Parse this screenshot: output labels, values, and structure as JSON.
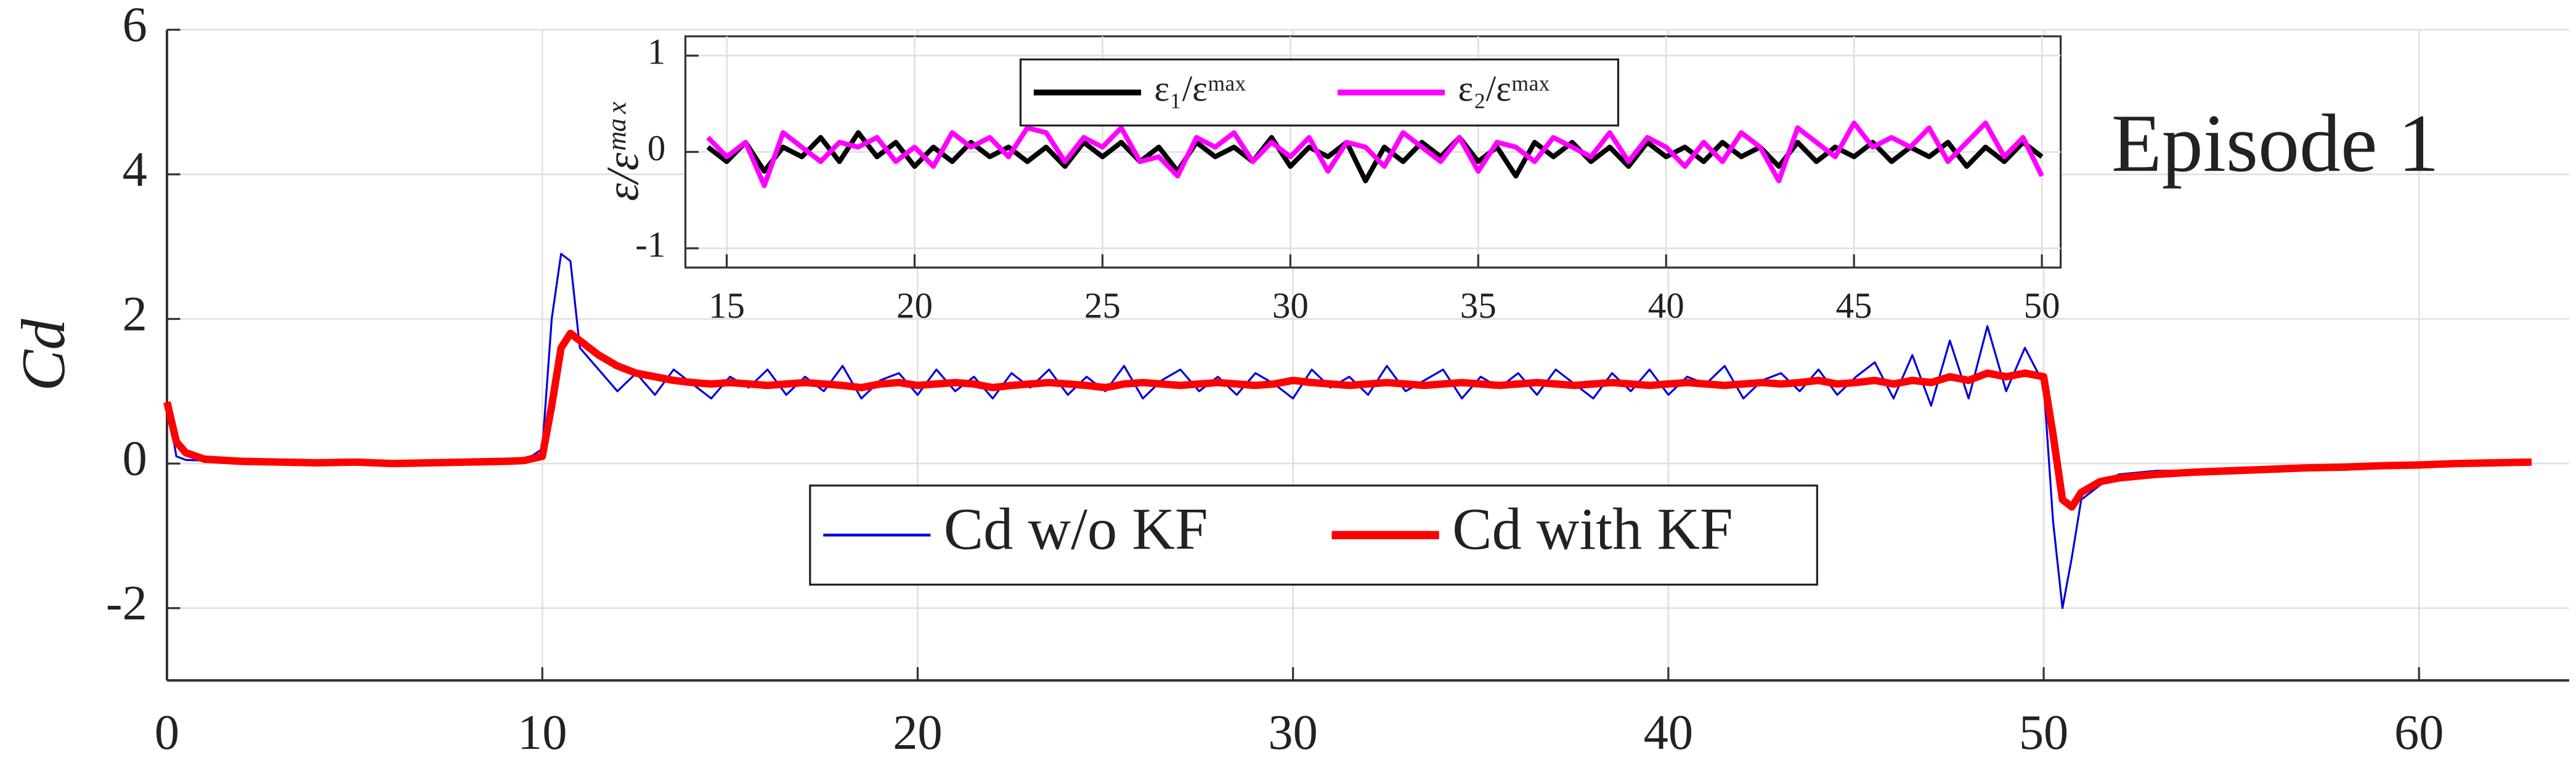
{
  "chart_data": [
    {
      "type": "line",
      "ylabel": "Cd",
      "annotation": "Episode 1",
      "legend": "lower center",
      "grid": true,
      "xlim": [
        0,
        64
      ],
      "xticks": [
        0,
        10,
        20,
        30,
        40,
        50,
        60
      ],
      "ylim": [
        -3,
        6
      ],
      "yticks": [
        {
          "value": -2,
          "label": "-2"
        },
        0,
        2,
        4,
        6
      ],
      "x": [
        0,
        0.25,
        0.5,
        1,
        2,
        3,
        4,
        5,
        6,
        7,
        8,
        9,
        9.5,
        10,
        10.25,
        10.5,
        10.75,
        11,
        11.5,
        12,
        12.5,
        13,
        13.5,
        14,
        14.5,
        15,
        15.5,
        16,
        16.5,
        17,
        17.5,
        18,
        18.5,
        19,
        19.5,
        20,
        20.5,
        21,
        21.5,
        22,
        22.5,
        23,
        23.5,
        24,
        24.5,
        25,
        25.5,
        26,
        26.5,
        27,
        27.5,
        28,
        28.5,
        29,
        29.5,
        30,
        30.5,
        31,
        31.5,
        32,
        32.5,
        33,
        33.5,
        34,
        34.5,
        35,
        35.5,
        36,
        36.5,
        37,
        37.5,
        38,
        38.5,
        39,
        39.5,
        40,
        40.5,
        41,
        41.5,
        42,
        42.5,
        43,
        43.5,
        44,
        44.5,
        45,
        45.5,
        46,
        46.5,
        47,
        47.5,
        48,
        48.5,
        49,
        49.5,
        50,
        50.25,
        50.5,
        50.75,
        51,
        51.5,
        52,
        53,
        54,
        55,
        56,
        57,
        58,
        59,
        60,
        61,
        62,
        63
      ],
      "series": [
        {
          "name": "Cd w/o KF",
          "color": "#0000dd",
          "values": [
            0.85,
            0.1,
            0.05,
            0.04,
            0.02,
            0.01,
            0.02,
            0.01,
            0.0,
            0.01,
            0.02,
            0.02,
            0.03,
            0.2,
            2.0,
            2.9,
            2.8,
            1.6,
            1.3,
            1.0,
            1.25,
            0.95,
            1.3,
            1.1,
            0.9,
            1.2,
            1.05,
            1.3,
            0.95,
            1.2,
            1.0,
            1.35,
            0.9,
            1.15,
            1.25,
            0.95,
            1.3,
            1.0,
            1.2,
            0.9,
            1.25,
            1.05,
            1.3,
            0.95,
            1.2,
            1.0,
            1.35,
            0.9,
            1.15,
            1.3,
            1.0,
            1.2,
            0.95,
            1.25,
            1.1,
            0.9,
            1.3,
            1.05,
            1.2,
            0.95,
            1.35,
            1.0,
            1.15,
            1.3,
            0.9,
            1.2,
            1.05,
            1.25,
            0.95,
            1.3,
            1.1,
            0.9,
            1.25,
            1.0,
            1.3,
            0.95,
            1.2,
            1.1,
            1.35,
            0.9,
            1.15,
            1.25,
            1.0,
            1.3,
            0.95,
            1.2,
            1.4,
            0.9,
            1.5,
            0.8,
            1.7,
            0.9,
            1.9,
            1.0,
            1.6,
            1.1,
            -0.8,
            -2.0,
            -1.3,
            -0.5,
            -0.3,
            -0.15,
            -0.1,
            -0.1,
            -0.08,
            -0.05,
            -0.04,
            -0.03,
            -0.02,
            -0.01,
            0.0,
            0.01,
            0.02
          ]
        },
        {
          "name": "Cd with KF",
          "color": "#ff0000",
          "values": [
            0.85,
            0.3,
            0.15,
            0.06,
            0.03,
            0.02,
            0.01,
            0.02,
            0.0,
            0.01,
            0.02,
            0.03,
            0.04,
            0.1,
            0.8,
            1.6,
            1.8,
            1.7,
            1.5,
            1.35,
            1.25,
            1.2,
            1.15,
            1.12,
            1.1,
            1.12,
            1.1,
            1.08,
            1.1,
            1.12,
            1.1,
            1.08,
            1.05,
            1.1,
            1.12,
            1.08,
            1.1,
            1.12,
            1.1,
            1.05,
            1.08,
            1.1,
            1.12,
            1.1,
            1.08,
            1.05,
            1.1,
            1.12,
            1.1,
            1.08,
            1.1,
            1.12,
            1.1,
            1.08,
            1.1,
            1.15,
            1.12,
            1.1,
            1.08,
            1.1,
            1.12,
            1.1,
            1.08,
            1.1,
            1.12,
            1.1,
            1.08,
            1.1,
            1.12,
            1.1,
            1.08,
            1.1,
            1.12,
            1.1,
            1.08,
            1.1,
            1.12,
            1.1,
            1.08,
            1.1,
            1.12,
            1.1,
            1.12,
            1.15,
            1.1,
            1.12,
            1.15,
            1.1,
            1.15,
            1.12,
            1.2,
            1.15,
            1.25,
            1.2,
            1.25,
            1.2,
            0.4,
            -0.5,
            -0.6,
            -0.4,
            -0.25,
            -0.2,
            -0.15,
            -0.12,
            -0.1,
            -0.08,
            -0.06,
            -0.05,
            -0.03,
            -0.02,
            0.0,
            0.01,
            0.02
          ]
        }
      ]
    },
    {
      "type": "line",
      "ylabel": "ε/εᵐᵃˣ",
      "legend": "upper center",
      "grid": true,
      "xlim": [
        13.9,
        50.5
      ],
      "xticks": [
        15,
        20,
        25,
        30,
        35,
        40,
        45,
        50
      ],
      "ylim": [
        -1.2,
        1.2
      ],
      "yticks": [
        -1,
        0,
        1
      ],
      "x": [
        14.5,
        15,
        15.5,
        16,
        16.5,
        17,
        17.5,
        18,
        18.5,
        19,
        19.5,
        20,
        20.5,
        21,
        21.5,
        22,
        22.5,
        23,
        23.5,
        24,
        24.5,
        25,
        25.5,
        26,
        26.5,
        27,
        27.5,
        28,
        28.5,
        29,
        29.5,
        30,
        30.5,
        31,
        31.5,
        32,
        32.5,
        33,
        33.5,
        34,
        34.5,
        35,
        35.5,
        36,
        36.5,
        37,
        37.5,
        38,
        38.5,
        39,
        39.5,
        40,
        40.5,
        41,
        41.5,
        42,
        42.5,
        43,
        43.5,
        44,
        44.5,
        45,
        45.5,
        46,
        46.5,
        47,
        47.5,
        48,
        48.5,
        49,
        49.5,
        50
      ],
      "series": [
        {
          "name": "ε₁/εᵐᵃˣ",
          "color": "#000000",
          "values": [
            0.05,
            -0.1,
            0.1,
            -0.2,
            0.05,
            -0.05,
            0.15,
            -0.1,
            0.2,
            -0.05,
            0.1,
            -0.15,
            0.05,
            -0.1,
            0.1,
            -0.05,
            0.05,
            -0.1,
            0.05,
            -0.15,
            0.1,
            -0.05,
            0.1,
            -0.1,
            0.05,
            -0.2,
            0.1,
            -0.05,
            0.05,
            -0.1,
            0.15,
            -0.15,
            0.05,
            -0.05,
            0.1,
            -0.3,
            0.05,
            -0.1,
            0.1,
            -0.05,
            0.15,
            -0.1,
            0.05,
            -0.25,
            0.1,
            -0.05,
            0.1,
            -0.1,
            0.05,
            -0.15,
            0.1,
            -0.05,
            0.05,
            -0.1,
            0.1,
            -0.05,
            0.05,
            -0.15,
            0.1,
            -0.1,
            0.05,
            -0.05,
            0.1,
            -0.1,
            0.05,
            -0.05,
            0.1,
            -0.15,
            0.05,
            -0.1,
            0.1,
            -0.05
          ]
        },
        {
          "name": "ε₂/εᵐᵃˣ",
          "color": "#ff00ff",
          "values": [
            0.15,
            -0.05,
            0.1,
            -0.35,
            0.2,
            0.05,
            -0.1,
            0.1,
            0.05,
            0.15,
            -0.1,
            0.05,
            -0.15,
            0.2,
            0.05,
            0.15,
            -0.05,
            0.25,
            0.2,
            -0.1,
            0.15,
            0.05,
            0.25,
            -0.1,
            -0.05,
            -0.25,
            0.15,
            0.05,
            0.2,
            -0.1,
            0.1,
            -0.05,
            0.15,
            -0.2,
            0.1,
            0.05,
            -0.15,
            0.2,
            0.05,
            -0.1,
            0.15,
            -0.2,
            0.1,
            0.05,
            -0.1,
            0.15,
            0.05,
            -0.05,
            0.2,
            -0.1,
            0.15,
            0.05,
            -0.15,
            0.1,
            -0.1,
            0.2,
            0.05,
            -0.3,
            0.25,
            0.1,
            -0.05,
            0.3,
            0.05,
            0.15,
            0.05,
            0.25,
            -0.1,
            0.1,
            0.3,
            -0.05,
            0.15,
            -0.25
          ]
        }
      ]
    }
  ]
}
